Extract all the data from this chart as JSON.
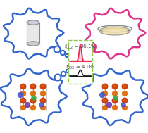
{
  "fig_width": 2.1,
  "fig_height": 1.89,
  "dpi": 100,
  "bg_color": "#ffffff",
  "top_peak_label": "$\\it{f}_{002}$ = 36.1%",
  "bottom_peak_label": "$\\it{f}_{002}$ = 4.0%",
  "top_peak_color": "#e8305a",
  "bottom_peak_color": "#1a1a1a",
  "label_fontsize": 5.0,
  "label_color": "#444444",
  "bubble_blue": "#3366cc",
  "bubble_pink": "#dd3388",
  "box_green": "#88cc44",
  "crystal_red": "#cc3300",
  "crystal_orange": "#dd6600",
  "crystal_blue_dot": "#4455cc",
  "crystal_green_dot": "#33aa44",
  "crystal_purple_dot": "#6633aa",
  "crystal_bond": "#cc8844"
}
